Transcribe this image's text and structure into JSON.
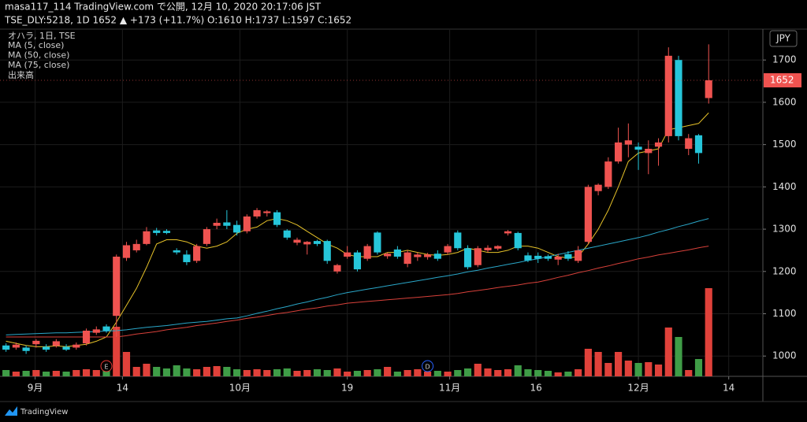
{
  "chart_data": {
    "type": "candlestick",
    "title": "masa117_114 TradingView.com で公開, 12月 10, 2020 20:17:06 JST",
    "subtitle": "TSE_DLY:5218, 1D 1652 ▲ +173 (+11.7%) O:1610 H:1737 L:1597 C:1652",
    "legend_title": "オハラ, 1日, TSE",
    "volume_name": "出来高",
    "currency": "JPY",
    "footer": "TradingView",
    "last_price": 1652,
    "up_color": "#ef5350",
    "down_color": "#26c6da",
    "volume_up_color": "#e0413a",
    "volume_down_color": "#3f9d47",
    "ylim": [
      952,
      1773
    ],
    "yticks": [
      1000,
      1100,
      1200,
      1300,
      1400,
      1500,
      1600,
      1700
    ],
    "xlim": [
      -0.6,
      75.4
    ],
    "xticks": [
      {
        "value": 2.9,
        "label": "9月"
      },
      {
        "value": 11.6,
        "label": "14"
      },
      {
        "value": 23.3,
        "label": "10月"
      },
      {
        "value": 34,
        "label": "19"
      },
      {
        "value": 44.2,
        "label": "11月"
      },
      {
        "value": 52.8,
        "label": "16"
      },
      {
        "value": 63,
        "label": "12月"
      },
      {
        "value": 72,
        "label": "14"
      }
    ],
    "grid": true,
    "vlim": [
      0,
      120
    ],
    "events": [
      {
        "label": "E",
        "index": 10
      },
      {
        "label": "D",
        "index": 42
      }
    ],
    "open": [
      1025,
      1020,
      1020,
      1028,
      1022,
      1024,
      1022,
      1020,
      1030,
      1055,
      1070,
      1095,
      1232,
      1250,
      1265,
      1297,
      1296,
      1250,
      1240,
      1225,
      1265,
      1308,
      1316,
      1310,
      1295,
      1330,
      1338,
      1340,
      1297,
      1268,
      1264,
      1272,
      1272,
      1200,
      1235,
      1245,
      1230,
      1292,
      1236,
      1252,
      1218,
      1234,
      1234,
      1242,
      1245,
      1292,
      1255,
      1215,
      1250,
      1254,
      1290,
      1291,
      1238,
      1237,
      1236,
      1228,
      1241,
      1225,
      1270,
      1390,
      1400,
      1460,
      1500,
      1495,
      1480,
      1495,
      1520,
      1700,
      1490,
      1522,
      1610
    ],
    "high": [
      1030,
      1032,
      1025,
      1040,
      1028,
      1040,
      1028,
      1032,
      1065,
      1070,
      1075,
      1240,
      1270,
      1275,
      1305,
      1303,
      1300,
      1255,
      1250,
      1265,
      1305,
      1325,
      1345,
      1320,
      1335,
      1350,
      1345,
      1345,
      1300,
      1280,
      1272,
      1275,
      1275,
      1218,
      1260,
      1250,
      1265,
      1295,
      1245,
      1260,
      1250,
      1245,
      1244,
      1250,
      1265,
      1297,
      1262,
      1260,
      1262,
      1262,
      1298,
      1294,
      1245,
      1245,
      1240,
      1242,
      1248,
      1260,
      1405,
      1408,
      1470,
      1540,
      1550,
      1505,
      1510,
      1515,
      1730,
      1710,
      1525,
      1525,
      1737
    ],
    "low": [
      1010,
      1015,
      1005,
      1020,
      1010,
      1020,
      1012,
      1015,
      1025,
      1050,
      1055,
      1045,
      1225,
      1245,
      1262,
      1285,
      1288,
      1240,
      1215,
      1220,
      1260,
      1300,
      1300,
      1285,
      1290,
      1325,
      1330,
      1305,
      1275,
      1262,
      1240,
      1260,
      1218,
      1195,
      1230,
      1200,
      1225,
      1240,
      1230,
      1230,
      1210,
      1225,
      1228,
      1225,
      1240,
      1250,
      1205,
      1210,
      1245,
      1250,
      1285,
      1250,
      1222,
      1220,
      1225,
      1215,
      1225,
      1220,
      1265,
      1380,
      1395,
      1455,
      1470,
      1440,
      1430,
      1450,
      1505,
      1510,
      1475,
      1455,
      1597
    ],
    "close": [
      1015,
      1027,
      1012,
      1036,
      1015,
      1035,
      1015,
      1027,
      1060,
      1063,
      1060,
      1235,
      1262,
      1265,
      1295,
      1291,
      1291,
      1245,
      1222,
      1260,
      1300,
      1315,
      1308,
      1292,
      1330,
      1345,
      1342,
      1310,
      1280,
      1275,
      1270,
      1265,
      1225,
      1215,
      1245,
      1205,
      1260,
      1245,
      1242,
      1235,
      1245,
      1240,
      1240,
      1230,
      1260,
      1255,
      1210,
      1255,
      1256,
      1260,
      1295,
      1255,
      1226,
      1230,
      1230,
      1235,
      1230,
      1250,
      1400,
      1405,
      1460,
      1505,
      1510,
      1488,
      1490,
      1505,
      1710,
      1520,
      1515,
      1480,
      1652
    ],
    "volume": [
      8,
      6,
      7,
      8,
      6,
      7,
      6,
      8,
      9,
      8,
      10,
      63,
      31,
      12,
      16,
      12,
      10,
      14,
      10,
      9,
      12,
      13,
      12,
      9,
      8,
      9,
      8,
      9,
      10,
      7,
      8,
      9,
      8,
      10,
      6,
      7,
      8,
      9,
      12,
      6,
      8,
      9,
      6,
      7,
      6,
      8,
      10,
      16,
      10,
      8,
      9,
      14,
      9,
      8,
      7,
      5,
      6,
      9,
      35,
      31,
      17,
      31,
      20,
      17,
      18,
      15,
      62,
      50,
      8,
      22,
      112
    ],
    "series": [
      {
        "name": "MA (5, close)",
        "color": "#e6c229",
        "values": [
          1035,
          1030,
          1025,
          1022,
          1022,
          1024,
          1022,
          1025,
          1028,
          1035,
          1045,
          1080,
          1120,
          1160,
          1210,
          1265,
          1275,
          1275,
          1270,
          1260,
          1255,
          1260,
          1270,
          1290,
          1300,
          1305,
          1320,
          1325,
          1320,
          1310,
          1295,
          1280,
          1265,
          1255,
          1240,
          1235,
          1235,
          1235,
          1245,
          1245,
          1250,
          1245,
          1240,
          1238,
          1240,
          1245,
          1255,
          1250,
          1245,
          1245,
          1250,
          1260,
          1260,
          1255,
          1245,
          1235,
          1232,
          1235,
          1265,
          1300,
          1345,
          1400,
          1460,
          1480,
          1485,
          1490,
          1535,
          1540,
          1545,
          1550,
          1575
        ]
      },
      {
        "name": "MA (50, close)",
        "color": "#2aa7c9",
        "values": [
          1050,
          1051,
          1052,
          1053,
          1054,
          1055,
          1055,
          1056,
          1057,
          1058,
          1059,
          1060,
          1062,
          1065,
          1068,
          1070,
          1072,
          1075,
          1078,
          1080,
          1082,
          1085,
          1088,
          1090,
          1095,
          1101,
          1106,
          1112,
          1117,
          1123,
          1128,
          1134,
          1139,
          1145,
          1150,
          1154,
          1158,
          1162,
          1166,
          1170,
          1174,
          1178,
          1182,
          1186,
          1190,
          1194,
          1199,
          1203,
          1208,
          1212,
          1217,
          1221,
          1226,
          1230,
          1235,
          1240,
          1245,
          1250,
          1255,
          1260,
          1265,
          1270,
          1275,
          1280,
          1286,
          1293,
          1299,
          1306,
          1312,
          1319,
          1325
        ]
      },
      {
        "name": "MA (75, close)",
        "color": "#d8413a",
        "values": [
          1045,
          1045,
          1045,
          1045,
          1045,
          1045,
          1045,
          1045,
          1045,
          1045,
          1045,
          1045,
          1048,
          1052,
          1055,
          1058,
          1062,
          1065,
          1068,
          1072,
          1075,
          1078,
          1082,
          1085,
          1089,
          1092,
          1096,
          1100,
          1103,
          1107,
          1111,
          1114,
          1118,
          1121,
          1125,
          1127,
          1129,
          1131,
          1133,
          1135,
          1137,
          1139,
          1141,
          1143,
          1145,
          1148,
          1152,
          1155,
          1158,
          1162,
          1165,
          1168,
          1172,
          1175,
          1180,
          1186,
          1191,
          1197,
          1202,
          1208,
          1213,
          1219,
          1224,
          1230,
          1234,
          1239,
          1243,
          1247,
          1251,
          1256,
          1260
        ]
      }
    ]
  }
}
